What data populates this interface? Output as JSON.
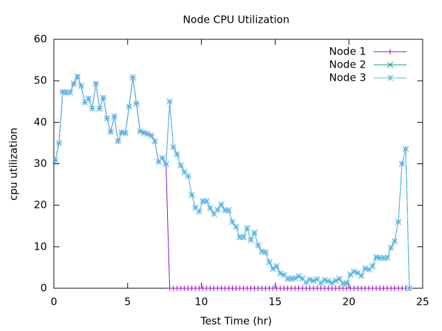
{
  "chart_data": {
    "type": "line",
    "title": "Node CPU Utilization",
    "x_label": "Test Time (hr)",
    "y_label": "cpu utilization",
    "x": [
      0.1,
      0.35,
      0.6,
      0.85,
      1.1,
      1.35,
      1.6,
      1.85,
      2.1,
      2.35,
      2.6,
      2.85,
      3.1,
      3.35,
      3.6,
      3.85,
      4.1,
      4.35,
      4.6,
      4.85,
      5.1,
      5.35,
      5.6,
      5.85,
      6.1,
      6.35,
      6.6,
      6.85,
      7.1,
      7.35,
      7.6,
      7.85,
      8.1,
      8.35,
      8.6,
      8.85,
      9.1,
      9.35,
      9.6,
      9.85,
      10.1,
      10.35,
      10.6,
      10.85,
      11.1,
      11.35,
      11.6,
      11.85,
      12.1,
      12.35,
      12.6,
      12.85,
      13.1,
      13.35,
      13.6,
      13.85,
      14.1,
      14.35,
      14.6,
      14.85,
      15.1,
      15.35,
      15.6,
      15.85,
      16.1,
      16.35,
      16.6,
      16.85,
      17.1,
      17.35,
      17.6,
      17.85,
      18.1,
      18.35,
      18.6,
      18.85,
      19.1,
      19.35,
      19.6,
      19.85,
      20.1,
      20.35,
      20.6,
      20.85,
      21.1,
      21.35,
      21.6,
      21.85,
      22.1,
      22.35,
      22.6,
      22.85,
      23.1,
      23.35,
      23.6,
      23.85,
      24.1
    ],
    "series": [
      {
        "name": "Node 1",
        "color": "#9400d3",
        "marker": "plus",
        "values": [
          30.8,
          35,
          47.3,
          47.2,
          47.2,
          49.3,
          51,
          48.8,
          44.8,
          45.7,
          43.3,
          49.3,
          43.3,
          45.9,
          41,
          37.7,
          41.4,
          35.4,
          37.6,
          37.4,
          43.8,
          50.8,
          44.5,
          37.8,
          37.5,
          37.2,
          36.8,
          35.4,
          30.5,
          31.4,
          29.9,
          0,
          0,
          0,
          0,
          0,
          0,
          0,
          0,
          0,
          0,
          0,
          0,
          0,
          0,
          0,
          0,
          0,
          0,
          0,
          0,
          0,
          0,
          0,
          0,
          0,
          0,
          0,
          0,
          0,
          0,
          0,
          0,
          0,
          0,
          0,
          0,
          0,
          0,
          0,
          0,
          0,
          0,
          0,
          0,
          0,
          0,
          0,
          0,
          0,
          0,
          0,
          0,
          0,
          0,
          0,
          0,
          0,
          0,
          0,
          0,
          0,
          0,
          0,
          0,
          0,
          0
        ]
      },
      {
        "name": "Node 2",
        "color": "#009e73",
        "marker": "cross",
        "values": [
          30.8,
          35,
          47.3,
          47.2,
          47.2,
          49.3,
          51,
          48.8,
          44.8,
          45.7,
          43.3,
          49.3,
          43.3,
          45.9,
          41,
          37.7,
          41.4,
          35.4,
          37.6,
          37.4,
          43.8,
          50.8,
          44.5,
          37.8,
          37.5,
          37.2,
          36.8,
          35.4,
          30.5,
          31.4,
          29.9,
          45,
          34,
          32.3,
          29.6,
          28,
          27,
          22.5,
          19.4,
          18.5,
          21,
          21,
          19.3,
          17.9,
          18.9,
          20.2,
          18.8,
          18.8,
          16,
          14.8,
          12.3,
          12.3,
          14.5,
          11.6,
          13.4,
          10.3,
          8.8,
          8.7,
          6.3,
          4.7,
          5.3,
          3.6,
          3.2,
          2.3,
          2.3,
          2.4,
          2.9,
          2.3,
          1.4,
          2.1,
          1.8,
          2.2,
          1.3,
          2,
          1.7,
          1.3,
          1.8,
          2.3,
          1.1,
          1.2,
          3.3,
          4,
          3.7,
          3,
          4.8,
          4.5,
          5.3,
          7.5,
          7.3,
          7.3,
          7.3,
          9.8,
          11.3,
          16,
          30,
          33.6,
          0
        ]
      },
      {
        "name": "Node 3",
        "color": "#56b4e9",
        "marker": "star",
        "values": [
          30.8,
          35,
          47.3,
          47.2,
          47.2,
          49.3,
          51,
          48.8,
          44.8,
          45.7,
          43.3,
          49.3,
          43.3,
          45.9,
          41,
          37.7,
          41.4,
          35.4,
          37.6,
          37.4,
          43.8,
          50.8,
          44.5,
          37.8,
          37.5,
          37.2,
          36.8,
          35.4,
          30.5,
          31.4,
          29.9,
          45,
          34,
          32.3,
          29.6,
          28,
          27,
          22.5,
          19.4,
          18.5,
          21,
          21,
          19.3,
          17.9,
          18.9,
          20.2,
          18.8,
          18.8,
          16,
          14.8,
          12.3,
          12.3,
          14.5,
          11.6,
          13.4,
          10.3,
          8.8,
          8.7,
          6.3,
          4.7,
          5.3,
          3.6,
          3.2,
          2.3,
          2.3,
          2.4,
          2.9,
          2.3,
          1.4,
          2.1,
          1.8,
          2.2,
          1.3,
          2,
          1.7,
          1.3,
          1.8,
          2.3,
          1.1,
          1.2,
          3.3,
          4,
          3.7,
          3,
          4.8,
          4.5,
          5.3,
          7.5,
          7.3,
          7.3,
          7.3,
          9.8,
          11.3,
          16,
          30,
          33.6,
          0
        ]
      }
    ],
    "xlim": [
      0,
      25
    ],
    "xticks": [
      0,
      5,
      10,
      15,
      20,
      25
    ],
    "ylim": [
      0,
      60
    ],
    "yticks": [
      0,
      10,
      20,
      30,
      40,
      50,
      60
    ],
    "legend": "top-right",
    "grid": false
  }
}
